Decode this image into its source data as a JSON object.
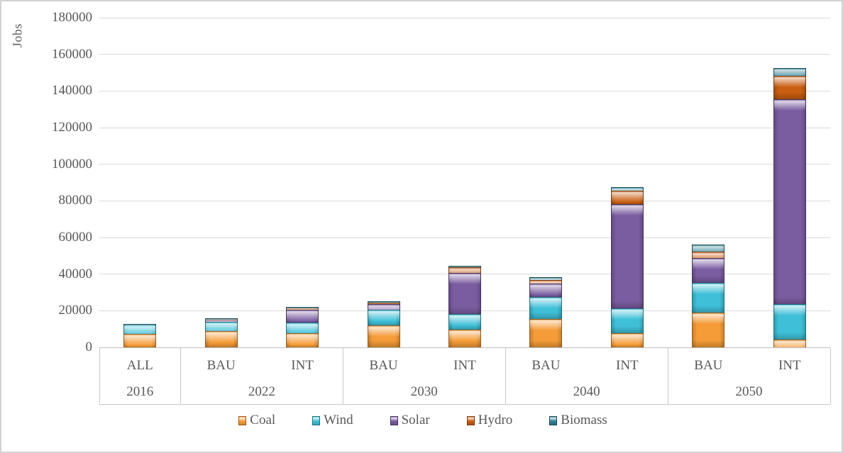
{
  "chart": {
    "ylabel": "Jobs"
  },
  "chart_data": {
    "type": "bar",
    "stacked": true,
    "title": "",
    "xlabel": "",
    "ylabel": "Jobs",
    "ylim": [
      0,
      180000
    ],
    "ytick_step": 20000,
    "ytick_labels": [
      "0",
      "20000",
      "40000",
      "60000",
      "80000",
      "100000",
      "120000",
      "140000",
      "160000",
      "180000"
    ],
    "grid": true,
    "legend_position": "bottom",
    "bar_scenarios": [
      "ALL",
      "BAU",
      "INT",
      "BAU",
      "INT",
      "BAU",
      "INT",
      "BAU",
      "INT"
    ],
    "groups": [
      {
        "label": "2016",
        "bar_count": 1
      },
      {
        "label": "2022",
        "bar_count": 2
      },
      {
        "label": "2030",
        "bar_count": 2
      },
      {
        "label": "2040",
        "bar_count": 2
      },
      {
        "label": "2050",
        "bar_count": 2
      }
    ],
    "series": [
      {
        "name": "Coal",
        "color": "#F59C38",
        "border": "#9c5b14",
        "values": [
          7300,
          8800,
          7800,
          12000,
          9500,
          15300,
          7600,
          18800,
          4300
        ]
      },
      {
        "name": "Wind",
        "color": "#3FC0D8",
        "border": "#17717f",
        "values": [
          5000,
          5200,
          5600,
          8500,
          8700,
          12000,
          13500,
          16500,
          19400
        ]
      },
      {
        "name": "Solar",
        "color": "#7A5CA0",
        "border": "#46325e",
        "values": [
          0,
          1200,
          7000,
          3200,
          22300,
          7700,
          57000,
          13600,
          111700
        ]
      },
      {
        "name": "Hydro",
        "color": "#C95E11",
        "border": "#7a3a0a",
        "values": [
          400,
          200,
          1300,
          600,
          3300,
          1800,
          7500,
          3400,
          12800
        ]
      },
      {
        "name": "Biomass",
        "color": "#2E7F96",
        "border": "#174853",
        "values": [
          100,
          600,
          300,
          900,
          600,
          1700,
          2000,
          3700,
          4500
        ]
      }
    ],
    "bar_totals": [
      12800,
      16000,
      22000,
      25200,
      44400,
      38500,
      87600,
      56000,
      152700
    ]
  }
}
